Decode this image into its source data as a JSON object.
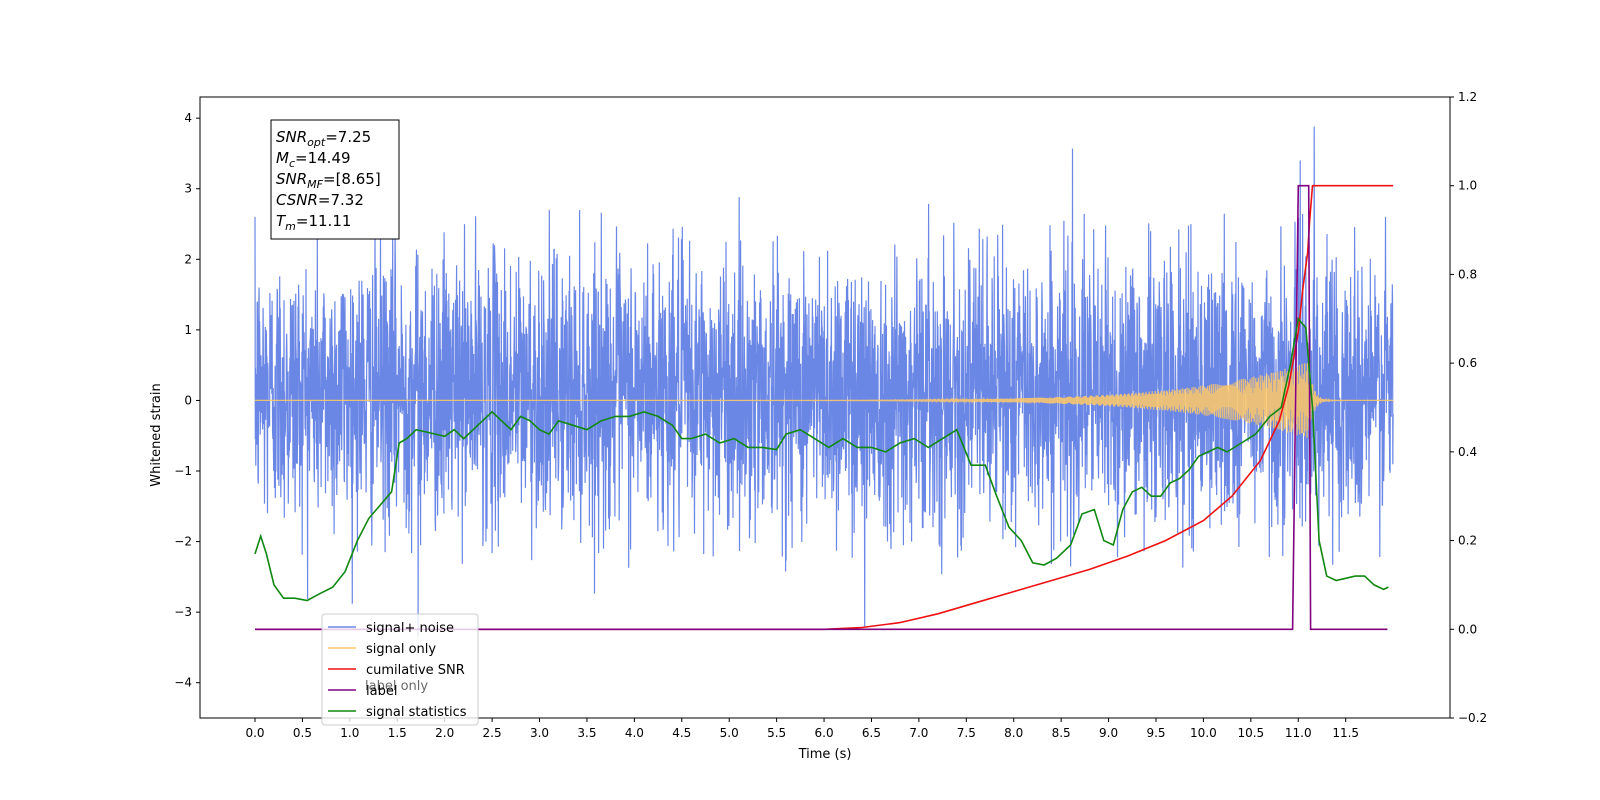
{
  "chart_data": {
    "type": "line",
    "xlabel": "Time (s)",
    "ylabel": "Whitened strain",
    "xlim": [
      -0.58,
      12.6
    ],
    "ylim": [
      -4.5,
      4.3
    ],
    "ylim_right": [
      -0.2,
      1.2
    ],
    "x_ticks": [
      "0.0",
      "0.5",
      "1.0",
      "1.5",
      "2.0",
      "2.5",
      "3.0",
      "3.5",
      "4.0",
      "4.5",
      "5.0",
      "5.5",
      "6.0",
      "6.5",
      "7.0",
      "7.5",
      "8.0",
      "8.5",
      "9.0",
      "9.5",
      "10.0",
      "10.5",
      "11.0",
      "11.5"
    ],
    "y_ticks": [
      "4",
      "3",
      "2",
      "1",
      "0",
      "−1",
      "−2",
      "−3",
      "−4"
    ],
    "y_ticks_right": [
      "1.2",
      "1.0",
      "0.8",
      "0.6",
      "0.4",
      "0.2",
      "0.0",
      "−0.2"
    ],
    "grid": false,
    "legend_position": "lower-left",
    "annotation": {
      "lines": [
        {
          "base": "SNR",
          "sub": "opt",
          "rest": "=7.25"
        },
        {
          "base": "M",
          "sub": "c",
          "rest": "=14.49"
        },
        {
          "base": "SNR",
          "sub": "MF",
          "rest": "=[8.65]"
        },
        {
          "base": "CSNR",
          "sub": "",
          "rest": "=7.32"
        },
        {
          "base": "T",
          "sub": "m",
          "rest": "=11.11"
        }
      ]
    },
    "legend": [
      {
        "label": "signal+ noise",
        "color": "#6b87e6"
      },
      {
        "label": "signal only",
        "color": "#ffc966"
      },
      {
        "label": "cumilative SNR",
        "color": "#ee1111"
      },
      {
        "label": "label",
        "color": "#800080"
      },
      {
        "label": "signal statistics",
        "color": "#118811"
      }
    ],
    "ghost_text": "label only",
    "series": [
      {
        "name": "signal+ noise",
        "axis": "left",
        "color": "#6b87e6",
        "description": "dense noisy time series spanning roughly -2.5 to 3.3 over 0 to 12 s",
        "x_range": [
          0.0,
          12.0
        ],
        "typical_band": [
          -2.0,
          2.3
        ],
        "notable_peaks": [
          {
            "x": 11.02,
            "y": 3.4
          },
          {
            "x": 11.17,
            "y": 3.88
          },
          {
            "x": 8.62,
            "y": 3.57
          },
          {
            "x": 6.43,
            "y": -3.2
          },
          {
            "x": 1.72,
            "y": -3.35
          }
        ]
      },
      {
        "name": "signal only",
        "axis": "left",
        "color": "#ffc966",
        "description": "chirp with amplitude growing from 0 to about 0.55 near merger at 11.11 s",
        "x_range": [
          0.0,
          12.0
        ],
        "peak_amplitude": 0.55,
        "merger_time": 11.11
      },
      {
        "name": "cumilative SNR",
        "axis": "right",
        "color": "#ee1111",
        "x": [
          0.0,
          6.0,
          6.4,
          6.8,
          7.2,
          7.6,
          8.0,
          8.4,
          8.8,
          9.2,
          9.6,
          10.0,
          10.3,
          10.6,
          10.8,
          10.9,
          11.0,
          11.05,
          11.1,
          11.12,
          11.15,
          11.3,
          11.6,
          12.0
        ],
        "values": [
          0.0,
          0.0,
          0.004,
          0.015,
          0.035,
          0.06,
          0.085,
          0.11,
          0.135,
          0.165,
          0.2,
          0.245,
          0.3,
          0.38,
          0.47,
          0.55,
          0.67,
          0.77,
          0.85,
          0.92,
          1.0,
          1.0,
          1.0,
          1.0
        ]
      },
      {
        "name": "label",
        "axis": "right",
        "color": "#800080",
        "x": [
          0.0,
          10.94,
          11.0,
          11.11,
          11.13,
          11.17,
          11.94
        ],
        "values": [
          0.0,
          0.0,
          1.0,
          1.0,
          0.0,
          0.0,
          0.0
        ]
      },
      {
        "name": "signal statistics",
        "axis": "right",
        "color": "#118811",
        "x": [
          0.0,
          0.06,
          0.12,
          0.2,
          0.3,
          0.42,
          0.55,
          0.68,
          0.82,
          0.95,
          1.08,
          1.2,
          1.32,
          1.44,
          1.52,
          1.6,
          1.7,
          1.8,
          1.9,
          2.0,
          2.1,
          2.2,
          2.3,
          2.4,
          2.5,
          2.6,
          2.7,
          2.8,
          2.9,
          3.0,
          3.1,
          3.2,
          3.35,
          3.5,
          3.65,
          3.8,
          3.95,
          4.1,
          4.25,
          4.4,
          4.5,
          4.6,
          4.75,
          4.9,
          5.05,
          5.2,
          5.35,
          5.5,
          5.6,
          5.75,
          5.9,
          6.05,
          6.2,
          6.35,
          6.5,
          6.65,
          6.8,
          6.95,
          7.1,
          7.25,
          7.4,
          7.55,
          7.7,
          7.82,
          7.95,
          8.08,
          8.2,
          8.32,
          8.45,
          8.6,
          8.72,
          8.85,
          8.95,
          9.05,
          9.15,
          9.25,
          9.35,
          9.45,
          9.55,
          9.65,
          9.75,
          9.85,
          9.95,
          10.05,
          10.15,
          10.25,
          10.4,
          10.55,
          10.7,
          10.82,
          10.92,
          11.0,
          11.08,
          11.15,
          11.22,
          11.3,
          11.4,
          11.5,
          11.6,
          11.7,
          11.8,
          11.9,
          11.95
        ],
        "values": [
          0.17,
          0.21,
          0.17,
          0.1,
          0.07,
          0.07,
          0.065,
          0.08,
          0.095,
          0.13,
          0.2,
          0.25,
          0.28,
          0.31,
          0.42,
          0.43,
          0.45,
          0.445,
          0.44,
          0.435,
          0.45,
          0.43,
          0.45,
          0.47,
          0.49,
          0.47,
          0.45,
          0.48,
          0.47,
          0.45,
          0.44,
          0.47,
          0.46,
          0.45,
          0.47,
          0.48,
          0.48,
          0.49,
          0.48,
          0.46,
          0.43,
          0.43,
          0.44,
          0.42,
          0.43,
          0.41,
          0.41,
          0.405,
          0.44,
          0.45,
          0.43,
          0.41,
          0.43,
          0.41,
          0.41,
          0.4,
          0.42,
          0.43,
          0.41,
          0.43,
          0.45,
          0.37,
          0.37,
          0.3,
          0.23,
          0.2,
          0.15,
          0.145,
          0.16,
          0.19,
          0.26,
          0.27,
          0.2,
          0.19,
          0.27,
          0.31,
          0.32,
          0.3,
          0.3,
          0.33,
          0.34,
          0.36,
          0.39,
          0.4,
          0.41,
          0.4,
          0.42,
          0.44,
          0.48,
          0.5,
          0.6,
          0.7,
          0.68,
          0.5,
          0.2,
          0.12,
          0.11,
          0.115,
          0.12,
          0.12,
          0.1,
          0.09,
          0.095
        ]
      }
    ]
  }
}
